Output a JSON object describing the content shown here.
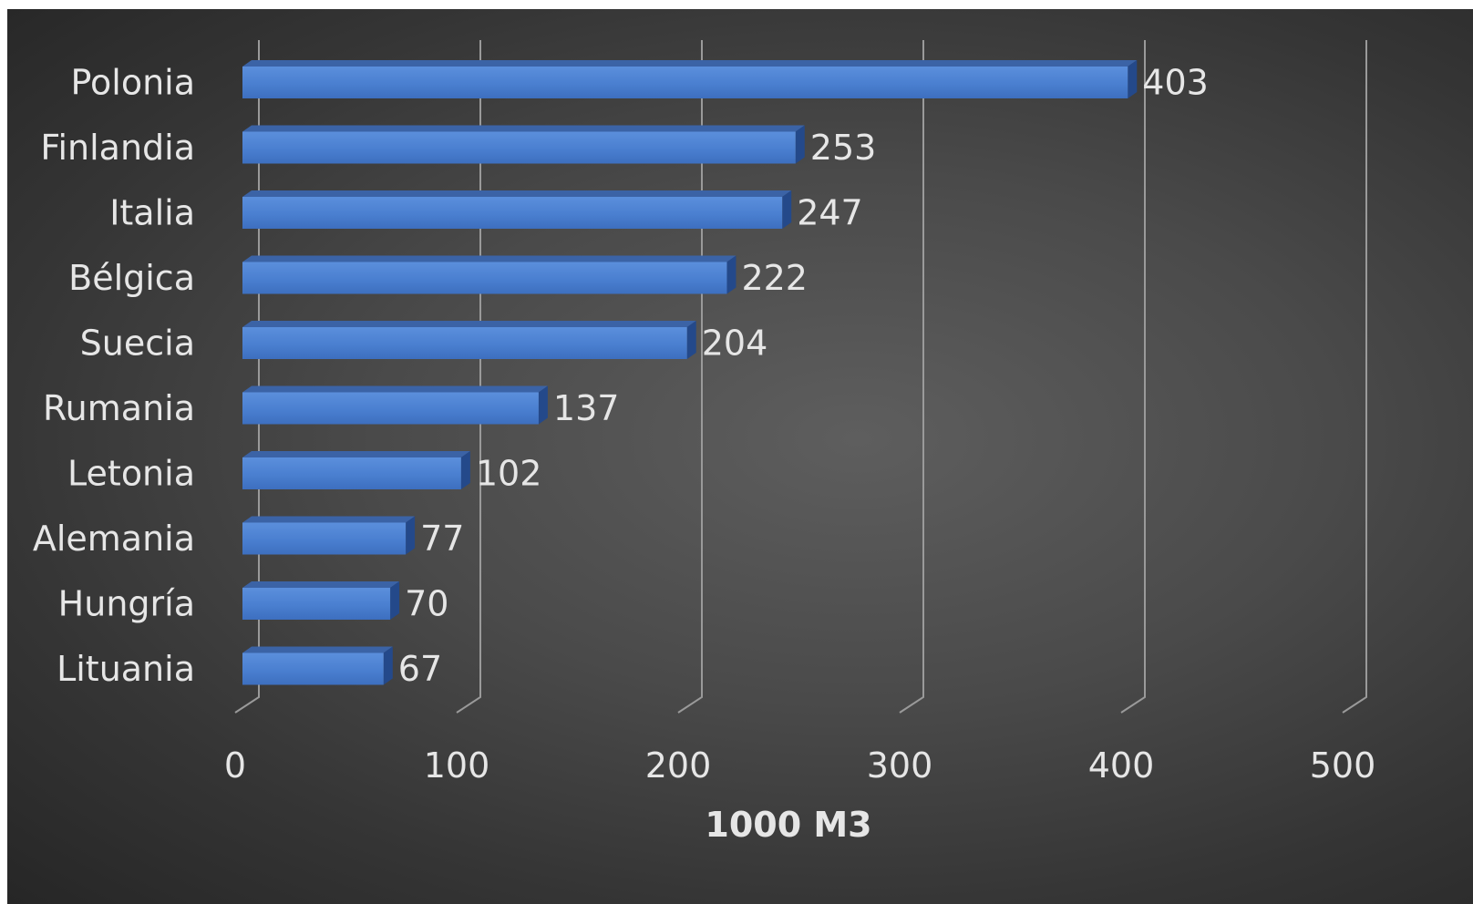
{
  "chart_data": {
    "type": "bar",
    "orientation": "horizontal",
    "style": "3d-clustered",
    "categories": [
      "Polonia",
      "Finlandia",
      "Italia",
      "Bélgica",
      "Suecia",
      "Rumania",
      "Letonia",
      "Alemania",
      "Hungría",
      "Lituania"
    ],
    "values": [
      403,
      253,
      247,
      222,
      204,
      137,
      102,
      77,
      70,
      67
    ],
    "data_labels": [
      "403",
      "253",
      "247",
      "222",
      "204",
      "137",
      "102",
      "77",
      "70",
      "67"
    ],
    "title": "",
    "xlabel": "1000 M3",
    "ylabel": "",
    "xlim": [
      0,
      500
    ],
    "x_ticks": [
      0,
      100,
      200,
      300,
      400,
      500
    ],
    "x_tick_labels": [
      "0",
      "100",
      "200",
      "300",
      "400",
      "500"
    ],
    "grid": true,
    "legend": "none",
    "colors": {
      "bar_front": "#4a7fd0",
      "bar_top": "#3b63a6",
      "bar_side": "#24498a",
      "background": "#4a4a4a",
      "text": "#e6e6e6",
      "gridline": "#9a9a9a"
    }
  }
}
